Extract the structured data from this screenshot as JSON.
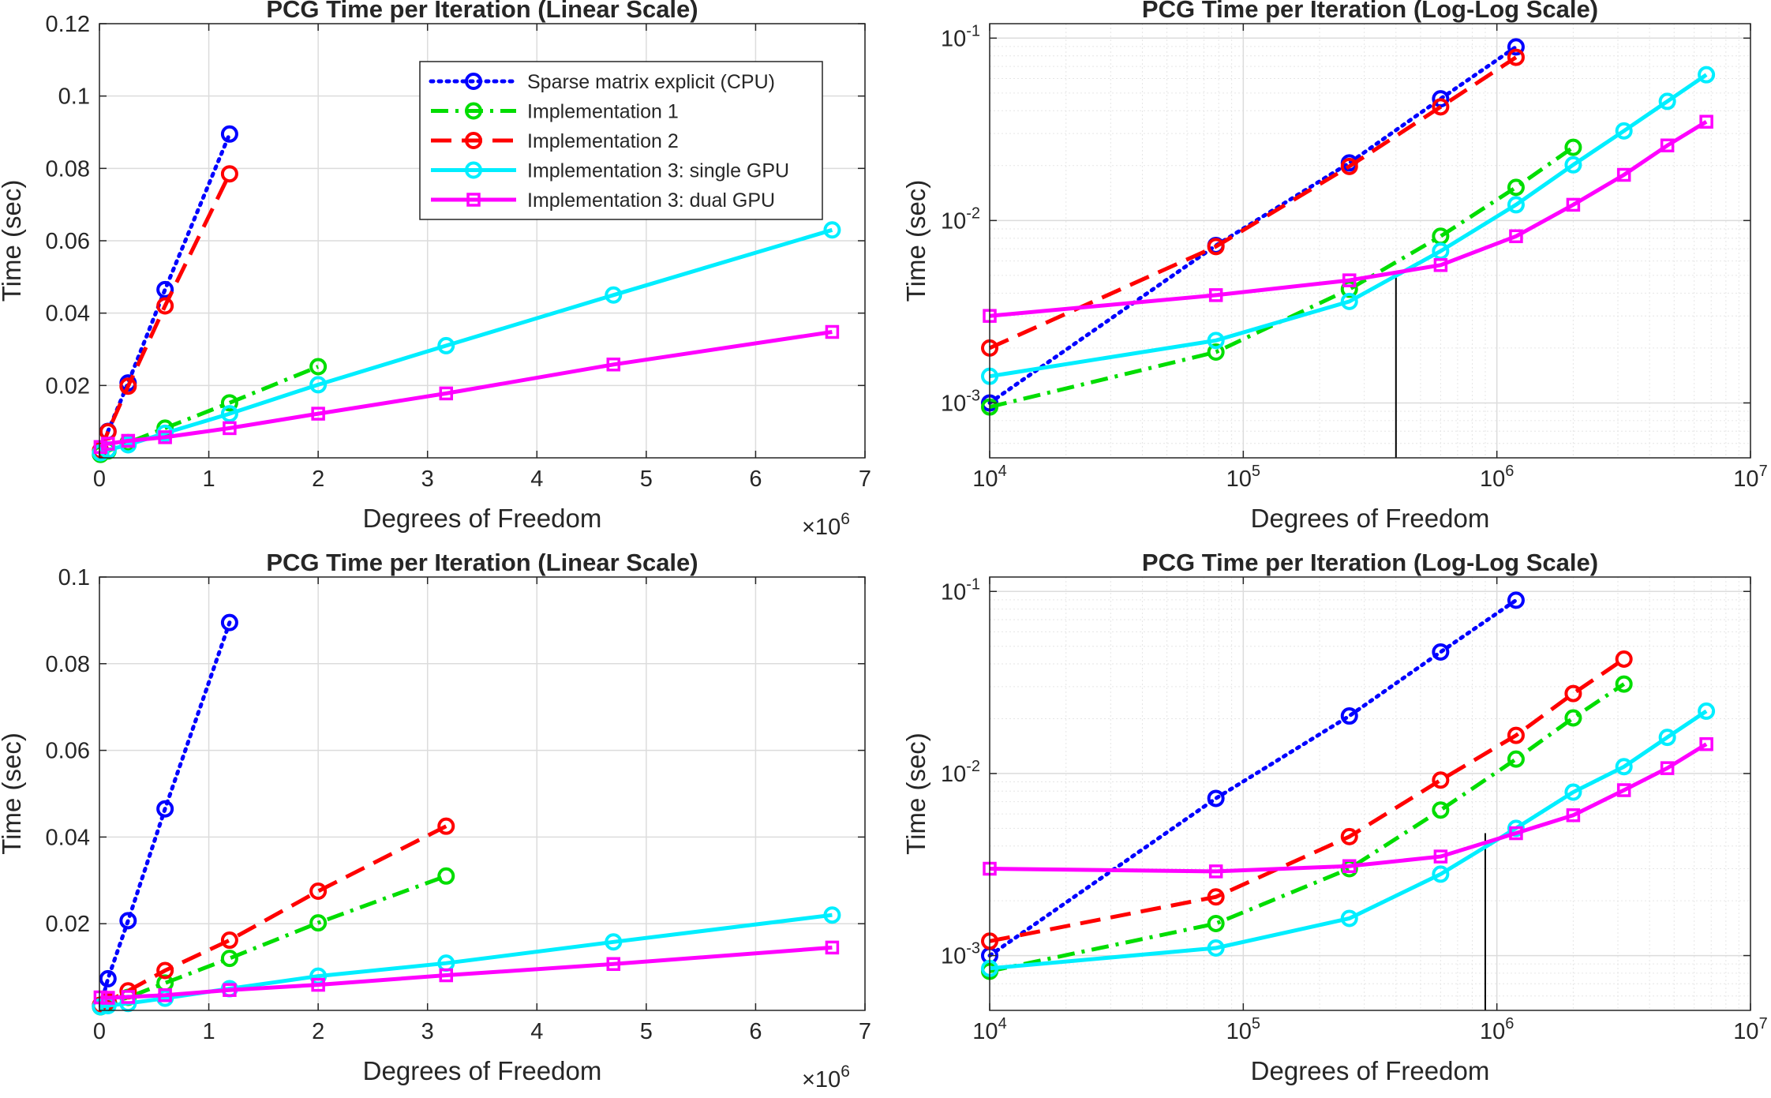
{
  "series_styles": [
    {
      "name": "Sparse matrix explicit (CPU)",
      "color": "#0000ff",
      "dash": "dotted",
      "marker": "circle"
    },
    {
      "name": "Implementation 1",
      "color": "#00dd00",
      "dash": "dashdot",
      "marker": "circle"
    },
    {
      "name": "Implementation 2",
      "color": "#ff0000",
      "dash": "dashed",
      "marker": "circle"
    },
    {
      "name": "Implementation 3: single GPU",
      "color": "#00eeff",
      "dash": "solid",
      "marker": "circle"
    },
    {
      "name": "Implementation 3: dual GPU",
      "color": "#ff00ff",
      "dash": "solid",
      "marker": "square"
    }
  ],
  "chart_data": [
    {
      "type": "line",
      "id": "top-left",
      "title": "PCG Time per Iteration (Linear Scale)",
      "xlabel": "Degrees of Freedom",
      "ylabel": "Time (sec)",
      "xscale": "linear",
      "yscale": "linear",
      "xlim": [
        0,
        7000000
      ],
      "ylim": [
        0,
        0.12
      ],
      "xticks": [
        0,
        1000000,
        2000000,
        3000000,
        4000000,
        5000000,
        6000000,
        7000000
      ],
      "xtick_labels": [
        "0",
        "1",
        "2",
        "3",
        "4",
        "5",
        "6",
        "7"
      ],
      "yticks": [
        0.02,
        0.04,
        0.06,
        0.08,
        0.1,
        0.12
      ],
      "ytick_labels": [
        "0.02",
        "0.04",
        "0.06",
        "0.08",
        "0.1",
        "0.12"
      ],
      "x_exponent_label": "×10",
      "x_exponent_power": "6",
      "grid": true,
      "legend": "top-right",
      "series": [
        {
          "name": "Sparse matrix explicit (CPU)",
          "x": [
            10000,
            78000,
            262000,
            600000,
            1190000
          ],
          "y": [
            0.001,
            0.0073,
            0.0207,
            0.0465,
            0.0895
          ]
        },
        {
          "name": "Implementation 1",
          "x": [
            10000,
            78000,
            262000,
            600000,
            1190000,
            2000000
          ],
          "y": [
            0.00095,
            0.0019,
            0.0042,
            0.0082,
            0.0152,
            0.0252
          ]
        },
        {
          "name": "Implementation 2",
          "x": [
            10000,
            78000,
            262000,
            600000,
            1190000
          ],
          "y": [
            0.002,
            0.0072,
            0.0198,
            0.042,
            0.0785
          ]
        },
        {
          "name": "Implementation 3: single GPU",
          "x": [
            10000,
            78000,
            262000,
            600000,
            1190000,
            2000000,
            3170000,
            4700000,
            6700000
          ],
          "y": [
            0.0014,
            0.0022,
            0.0036,
            0.0068,
            0.0122,
            0.0202,
            0.031,
            0.045,
            0.063
          ]
        },
        {
          "name": "Implementation 3: dual GPU",
          "x": [
            10000,
            78000,
            262000,
            600000,
            1190000,
            2000000,
            3170000,
            4700000,
            6700000
          ],
          "y": [
            0.003,
            0.0039,
            0.0047,
            0.0057,
            0.0082,
            0.0122,
            0.0178,
            0.0258,
            0.0348
          ]
        }
      ]
    },
    {
      "type": "line",
      "id": "top-right",
      "title": "PCG Time per Iteration (Log-Log Scale)",
      "xlabel": "Degrees of Freedom",
      "ylabel": "Time (sec)",
      "xscale": "log",
      "yscale": "log",
      "xlim": [
        10000,
        10000000
      ],
      "ylim": [
        0.0005,
        0.12
      ],
      "xticks": [
        10000,
        100000,
        1000000,
        10000000
      ],
      "xtick_labels": [
        [
          "10",
          "4"
        ],
        [
          "10",
          "5"
        ],
        [
          "10",
          "6"
        ],
        [
          "10",
          "7"
        ]
      ],
      "yticks": [
        0.001,
        0.01,
        0.1
      ],
      "ytick_labels": [
        [
          "10",
          "-3"
        ],
        [
          "10",
          "-2"
        ],
        [
          "10",
          "-1"
        ]
      ],
      "grid": true,
      "crossover_x": 400000,
      "series": [
        {
          "name": "Sparse matrix explicit (CPU)",
          "x": [
            10000,
            78000,
            262000,
            600000,
            1190000
          ],
          "y": [
            0.001,
            0.0073,
            0.0207,
            0.0465,
            0.0895
          ]
        },
        {
          "name": "Implementation 1",
          "x": [
            10000,
            78000,
            262000,
            600000,
            1190000,
            2000000
          ],
          "y": [
            0.00095,
            0.0019,
            0.0042,
            0.0082,
            0.0152,
            0.0252
          ]
        },
        {
          "name": "Implementation 2",
          "x": [
            10000,
            78000,
            262000,
            600000,
            1190000
          ],
          "y": [
            0.002,
            0.0072,
            0.0198,
            0.042,
            0.0785
          ]
        },
        {
          "name": "Implementation 3: single GPU",
          "x": [
            10000,
            78000,
            262000,
            600000,
            1190000,
            2000000,
            3170000,
            4700000,
            6700000
          ],
          "y": [
            0.0014,
            0.0022,
            0.0036,
            0.0068,
            0.0122,
            0.0202,
            0.031,
            0.045,
            0.063
          ]
        },
        {
          "name": "Implementation 3: dual GPU",
          "x": [
            10000,
            78000,
            262000,
            600000,
            1190000,
            2000000,
            3170000,
            4700000,
            6700000
          ],
          "y": [
            0.003,
            0.0039,
            0.0047,
            0.0057,
            0.0082,
            0.0122,
            0.0178,
            0.0258,
            0.0348
          ]
        }
      ]
    },
    {
      "type": "line",
      "id": "bottom-left",
      "title": "PCG Time per Iteration (Linear Scale)",
      "xlabel": "Degrees of Freedom",
      "ylabel": "Time (sec)",
      "xscale": "linear",
      "yscale": "linear",
      "xlim": [
        0,
        7000000
      ],
      "ylim": [
        0,
        0.1
      ],
      "xticks": [
        0,
        1000000,
        2000000,
        3000000,
        4000000,
        5000000,
        6000000,
        7000000
      ],
      "xtick_labels": [
        "0",
        "1",
        "2",
        "3",
        "4",
        "5",
        "6",
        "7"
      ],
      "yticks": [
        0.02,
        0.04,
        0.06,
        0.08,
        0.1
      ],
      "ytick_labels": [
        "0.02",
        "0.04",
        "0.06",
        "0.08",
        "0.1"
      ],
      "x_exponent_label": "×10",
      "x_exponent_power": "6",
      "grid": true,
      "series": [
        {
          "name": "Sparse matrix explicit (CPU)",
          "x": [
            10000,
            78000,
            262000,
            600000,
            1190000
          ],
          "y": [
            0.001,
            0.0073,
            0.0207,
            0.0465,
            0.0895
          ]
        },
        {
          "name": "Implementation 1",
          "x": [
            10000,
            78000,
            262000,
            600000,
            1190000,
            2000000,
            3170000
          ],
          "y": [
            0.00082,
            0.0015,
            0.003,
            0.0063,
            0.012,
            0.0202,
            0.031
          ]
        },
        {
          "name": "Implementation 2",
          "x": [
            10000,
            78000,
            262000,
            600000,
            1190000,
            2000000,
            3170000
          ],
          "y": [
            0.0012,
            0.0021,
            0.0045,
            0.0092,
            0.0162,
            0.0275,
            0.0425
          ]
        },
        {
          "name": "Implementation 3: single GPU",
          "x": [
            10000,
            78000,
            262000,
            600000,
            1190000,
            2000000,
            3170000,
            4700000,
            6700000
          ],
          "y": [
            0.00085,
            0.0011,
            0.0016,
            0.0028,
            0.005,
            0.0079,
            0.0109,
            0.0158,
            0.022
          ]
        },
        {
          "name": "Implementation 3: dual GPU",
          "x": [
            10000,
            78000,
            262000,
            600000,
            1190000,
            2000000,
            3170000,
            4700000,
            6700000
          ],
          "y": [
            0.003,
            0.0029,
            0.0031,
            0.0035,
            0.0047,
            0.0059,
            0.0081,
            0.0107,
            0.0145
          ]
        }
      ]
    },
    {
      "type": "line",
      "id": "bottom-right",
      "title": "PCG Time per Iteration (Log-Log Scale)",
      "xlabel": "Degrees of Freedom",
      "ylabel": "Time (sec)",
      "xscale": "log",
      "yscale": "log",
      "xlim": [
        10000,
        10000000
      ],
      "ylim": [
        0.0005,
        0.12
      ],
      "xticks": [
        10000,
        100000,
        1000000,
        10000000
      ],
      "xtick_labels": [
        [
          "10",
          "4"
        ],
        [
          "10",
          "5"
        ],
        [
          "10",
          "6"
        ],
        [
          "10",
          "7"
        ]
      ],
      "yticks": [
        0.001,
        0.01,
        0.1
      ],
      "ytick_labels": [
        [
          "10",
          "-3"
        ],
        [
          "10",
          "-2"
        ],
        [
          "10",
          "-1"
        ]
      ],
      "grid": true,
      "crossover_x": 900000,
      "series": [
        {
          "name": "Sparse matrix explicit (CPU)",
          "x": [
            10000,
            78000,
            262000,
            600000,
            1190000
          ],
          "y": [
            0.001,
            0.0073,
            0.0207,
            0.0465,
            0.0895
          ]
        },
        {
          "name": "Implementation 1",
          "x": [
            10000,
            78000,
            262000,
            600000,
            1190000,
            2000000,
            3170000
          ],
          "y": [
            0.00082,
            0.0015,
            0.003,
            0.0063,
            0.012,
            0.0202,
            0.031
          ]
        },
        {
          "name": "Implementation 2",
          "x": [
            10000,
            78000,
            262000,
            600000,
            1190000,
            2000000,
            3170000
          ],
          "y": [
            0.0012,
            0.0021,
            0.0045,
            0.0092,
            0.0162,
            0.0275,
            0.0425
          ]
        },
        {
          "name": "Implementation 3: single GPU",
          "x": [
            10000,
            78000,
            262000,
            600000,
            1190000,
            2000000,
            3170000,
            4700000,
            6700000
          ],
          "y": [
            0.00085,
            0.0011,
            0.0016,
            0.0028,
            0.005,
            0.0079,
            0.0109,
            0.0158,
            0.022
          ]
        },
        {
          "name": "Implementation 3: dual GPU",
          "x": [
            10000,
            78000,
            262000,
            600000,
            1190000,
            2000000,
            3170000,
            4700000,
            6700000
          ],
          "y": [
            0.003,
            0.0029,
            0.0031,
            0.0035,
            0.0047,
            0.0059,
            0.0081,
            0.0107,
            0.0145
          ]
        }
      ]
    }
  ]
}
